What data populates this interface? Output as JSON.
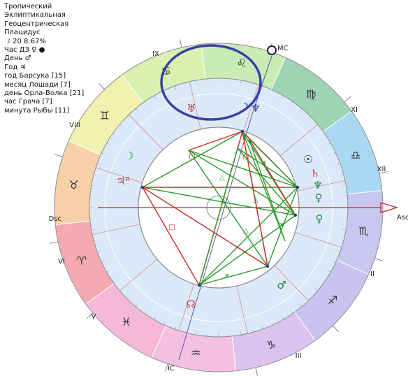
{
  "info": {
    "lines": [
      "Тропический",
      "Эклиптикальная",
      "Геоцентрическая",
      "Плацидус",
      "☽  20 8.67%",
      "Час ДЗ ♀ ●",
      "День ♂",
      "Год ♃",
      "год Барсука [15]",
      "месяц Лошади [7]",
      "день Орла-Волка [21]",
      "час Грача [7]",
      "минута Рыбы [11]"
    ]
  },
  "houses": {
    "numerals": [
      "XII",
      "XI",
      "IX",
      "VIII",
      "VI",
      "V",
      "III",
      "II"
    ],
    "angles": {
      "asc": "Asc",
      "dsc": "Dsc",
      "mc": "MC",
      "ic": "IC"
    }
  },
  "zodiac": {
    "signs": [
      {
        "glyph": "♏",
        "color": "#c7c7f0"
      },
      {
        "glyph": "♎",
        "color": "#a9d8f5"
      },
      {
        "glyph": "♍",
        "color": "#9ed4b4"
      },
      {
        "glyph": "♌",
        "color": "#c9ecb4"
      },
      {
        "glyph": "♋",
        "color": "#d9f0b0"
      },
      {
        "glyph": "♊",
        "color": "#f3f1b0"
      },
      {
        "glyph": "♉",
        "color": "#f8d0a8"
      },
      {
        "glyph": "♈",
        "color": "#f5aab2"
      },
      {
        "glyph": "♓",
        "color": "#f5b8d6"
      },
      {
        "glyph": "♒",
        "color": "#f3bfe3"
      },
      {
        "glyph": "♑",
        "color": "#dcc3ef"
      },
      {
        "glyph": "♐",
        "color": "#c9c3ef"
      }
    ]
  },
  "planets": [
    {
      "glyph": "☽",
      "color": "#1a1a6a",
      "name": "moon"
    },
    {
      "glyph": "♆",
      "color": "#2a3a9a",
      "name": "neptune"
    },
    {
      "glyph": "♅",
      "color": "#c44040",
      "name": "uranus"
    },
    {
      "glyph": "☽",
      "color": "#1f8a3a",
      "name": "moon-secondary"
    },
    {
      "glyph": "♃ᴿ",
      "color": "#c44040",
      "name": "jupiter"
    },
    {
      "glyph": "☉",
      "color": "#1a1a1a",
      "name": "sun"
    },
    {
      "glyph": "♄",
      "color": "#c44040",
      "name": "saturn"
    },
    {
      "glyph": "♆",
      "color": "#1f8a3a",
      "name": "neptune-secondary"
    },
    {
      "glyph": "♀",
      "color": "#1f8a3a",
      "name": "venus-upper"
    },
    {
      "glyph": "♀",
      "color": "#1f8a3a",
      "name": "venus"
    },
    {
      "glyph": "♂",
      "color": "#1f8a3a",
      "name": "mars"
    },
    {
      "glyph": "☊",
      "color": "#c44040",
      "name": "node"
    }
  ],
  "colors": {
    "harmonious_aspect": "#2a9a2a",
    "tense_aspect": "#cc2a2a",
    "axis": "#cc2a2a",
    "highlight": "#3a40a8",
    "inner_ring": "#dce9f8"
  }
}
